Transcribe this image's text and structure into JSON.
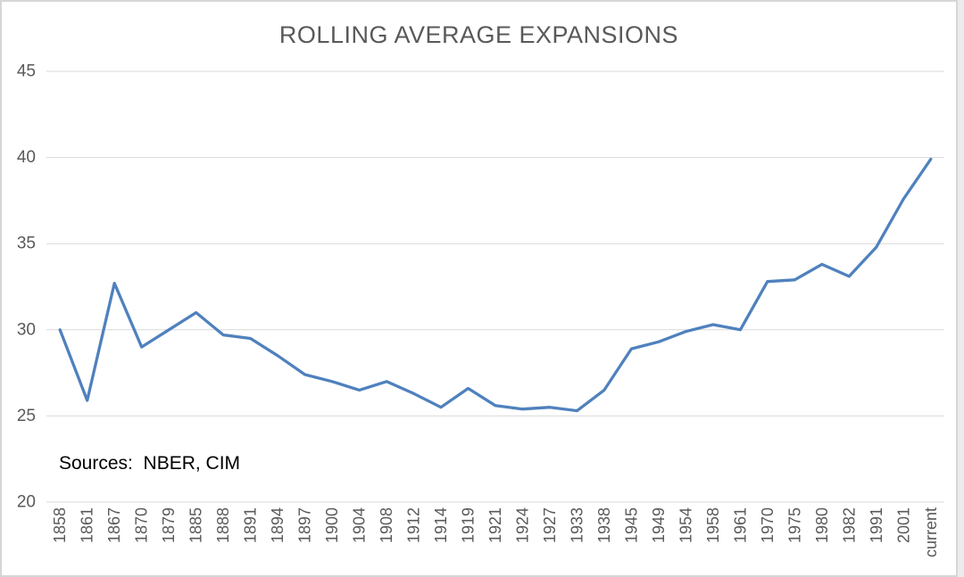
{
  "chart_data": {
    "type": "line",
    "title": "ROLLING AVERAGE EXPANSIONS",
    "categories": [
      "1858",
      "1861",
      "1867",
      "1870",
      "1879",
      "1885",
      "1888",
      "1891",
      "1894",
      "1897",
      "1900",
      "1904",
      "1908",
      "1912",
      "1914",
      "1919",
      "1921",
      "1924",
      "1927",
      "1933",
      "1938",
      "1945",
      "1949",
      "1954",
      "1958",
      "1961",
      "1970",
      "1975",
      "1980",
      "1982",
      "1991",
      "2001",
      "current"
    ],
    "values": [
      30.0,
      25.9,
      32.7,
      29.0,
      30.0,
      31.0,
      29.7,
      29.5,
      28.5,
      27.4,
      27.0,
      26.5,
      27.0,
      26.3,
      25.5,
      26.6,
      25.6,
      25.4,
      25.5,
      25.3,
      26.5,
      28.9,
      29.3,
      29.9,
      30.3,
      30.0,
      32.8,
      32.9,
      33.8,
      33.1,
      34.8,
      37.6,
      39.9
    ],
    "xlabel": "",
    "ylabel": "",
    "ylim": [
      20,
      45
    ],
    "yticks": [
      20,
      25,
      30,
      35,
      40,
      45
    ],
    "grid": "horizontal-only",
    "legend": "none",
    "x_label_rotation": "up-90",
    "source_note": "Sources:  NBER, CIM"
  },
  "colors": {
    "series_line": "#4F81BD",
    "gridline": "#d9d9d9",
    "tick_label": "#595959",
    "title": "#595959",
    "source_text": "#000000",
    "frame_border": "#d6d6d6",
    "plot_background": "#ffffff"
  }
}
